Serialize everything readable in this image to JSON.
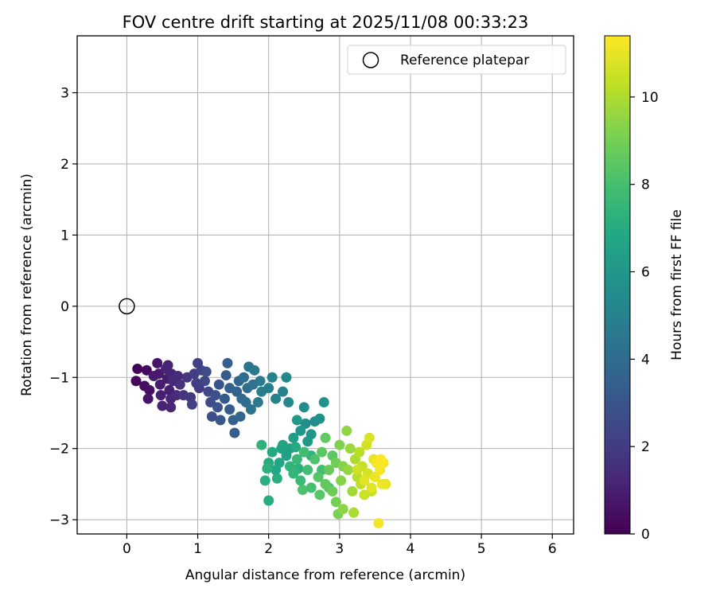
{
  "chart_data": {
    "type": "scatter",
    "title": "FOV centre drift starting at 2025/11/08 00:33:23",
    "xlabel": "Angular distance from reference (arcmin)",
    "ylabel": "Rotation from reference (arcmin)",
    "xlim": [
      -0.7,
      6.3
    ],
    "ylim": [
      -3.2,
      3.8
    ],
    "xticks": [
      0,
      1,
      2,
      3,
      4,
      5,
      6
    ],
    "yticks": [
      -3,
      -2,
      -1,
      0,
      1,
      2,
      3
    ],
    "xtick_labels": [
      "0",
      "1",
      "2",
      "3",
      "4",
      "5",
      "6"
    ],
    "ytick_labels": [
      "−3",
      "−2",
      "−1",
      "0",
      "1",
      "2",
      "3"
    ],
    "grid": true,
    "legend": {
      "label": "Reference platepar",
      "position": "top-right"
    },
    "reference_point": {
      "x": 0,
      "y": 0,
      "marker": "open-circle"
    },
    "colorbar": {
      "label": "Hours from first FF file",
      "min": 0,
      "max": 11.4,
      "ticks": [
        0,
        2,
        4,
        6,
        8,
        10
      ],
      "tick_labels": [
        "0",
        "2",
        "4",
        "6",
        "8",
        "10"
      ],
      "colormap": "viridis"
    },
    "series": [
      {
        "name": "FOV centre",
        "points": [
          {
            "x": 0.15,
            "y": -0.88,
            "t": 0.1
          },
          {
            "x": 0.13,
            "y": -1.05,
            "t": 0.2
          },
          {
            "x": 0.28,
            "y": -0.9,
            "t": 0.3
          },
          {
            "x": 0.25,
            "y": -1.12,
            "t": 0.4
          },
          {
            "x": 0.32,
            "y": -1.18,
            "t": 0.5
          },
          {
            "x": 0.3,
            "y": -1.3,
            "t": 0.6
          },
          {
            "x": 0.43,
            "y": -0.8,
            "t": 0.7
          },
          {
            "x": 0.45,
            "y": -0.95,
            "t": 0.8
          },
          {
            "x": 0.47,
            "y": -1.1,
            "t": 0.9
          },
          {
            "x": 0.48,
            "y": -1.25,
            "t": 1.0
          },
          {
            "x": 0.5,
            "y": -1.4,
            "t": 1.1
          },
          {
            "x": 0.55,
            "y": -0.88,
            "t": 1.2
          },
          {
            "x": 0.57,
            "y": -1.02,
            "t": 0.9
          },
          {
            "x": 0.6,
            "y": -1.18,
            "t": 1.0
          },
          {
            "x": 0.58,
            "y": -0.83,
            "t": 1.1
          },
          {
            "x": 0.62,
            "y": -1.3,
            "t": 1.3
          },
          {
            "x": 0.63,
            "y": -0.95,
            "t": 1.2
          },
          {
            "x": 0.65,
            "y": -1.05,
            "t": 1.4
          },
          {
            "x": 0.62,
            "y": -1.42,
            "t": 1.3
          },
          {
            "x": 0.7,
            "y": -1.25,
            "t": 1.5
          },
          {
            "x": 0.75,
            "y": -1.1,
            "t": 1.6
          },
          {
            "x": 0.8,
            "y": -1.25,
            "t": 1.7
          },
          {
            "x": 0.85,
            "y": -1.0,
            "t": 1.8
          },
          {
            "x": 0.9,
            "y": -1.28,
            "t": 1.9
          },
          {
            "x": 0.95,
            "y": -0.95,
            "t": 2.0
          },
          {
            "x": 0.98,
            "y": -1.08,
            "t": 2.1
          },
          {
            "x": 1.0,
            "y": -0.8,
            "t": 2.2
          },
          {
            "x": 1.02,
            "y": -1.15,
            "t": 2.0
          },
          {
            "x": 1.05,
            "y": -0.9,
            "t": 2.3
          },
          {
            "x": 0.92,
            "y": -1.38,
            "t": 2.2
          },
          {
            "x": 1.1,
            "y": -1.05,
            "t": 2.4
          },
          {
            "x": 1.15,
            "y": -1.2,
            "t": 2.5
          },
          {
            "x": 1.18,
            "y": -1.35,
            "t": 2.6
          },
          {
            "x": 1.2,
            "y": -1.55,
            "t": 2.7
          },
          {
            "x": 1.25,
            "y": -1.25,
            "t": 2.8
          },
          {
            "x": 1.28,
            "y": -1.42,
            "t": 2.9
          },
          {
            "x": 1.3,
            "y": -1.1,
            "t": 3.0
          },
          {
            "x": 1.32,
            "y": -1.6,
            "t": 3.1
          },
          {
            "x": 1.38,
            "y": -1.3,
            "t": 3.2
          },
          {
            "x": 1.4,
            "y": -0.97,
            "t": 3.3
          },
          {
            "x": 1.42,
            "y": -0.8,
            "t": 3.4
          },
          {
            "x": 1.45,
            "y": -1.45,
            "t": 3.3
          },
          {
            "x": 1.5,
            "y": -1.6,
            "t": 3.5
          },
          {
            "x": 1.52,
            "y": -1.78,
            "t": 3.4
          },
          {
            "x": 1.55,
            "y": -1.2,
            "t": 3.6
          },
          {
            "x": 1.58,
            "y": -1.05,
            "t": 3.7
          },
          {
            "x": 1.6,
            "y": -1.55,
            "t": 3.8
          },
          {
            "x": 1.62,
            "y": -1.3,
            "t": 3.9
          },
          {
            "x": 1.65,
            "y": -1.0,
            "t": 4.0
          },
          {
            "x": 1.68,
            "y": -1.35,
            "t": 4.1
          },
          {
            "x": 1.7,
            "y": -1.15,
            "t": 4.2
          },
          {
            "x": 1.72,
            "y": -0.85,
            "t": 4.3
          },
          {
            "x": 1.75,
            "y": -1.45,
            "t": 4.4
          },
          {
            "x": 1.78,
            "y": -1.1,
            "t": 4.3
          },
          {
            "x": 1.8,
            "y": -0.9,
            "t": 4.5
          },
          {
            "x": 1.85,
            "y": -1.35,
            "t": 4.6
          },
          {
            "x": 1.88,
            "y": -1.05,
            "t": 4.7
          },
          {
            "x": 1.9,
            "y": -1.2,
            "t": 4.8
          },
          {
            "x": 2.0,
            "y": -1.15,
            "t": 4.9
          },
          {
            "x": 2.05,
            "y": -1.0,
            "t": 5.0
          },
          {
            "x": 2.1,
            "y": -1.3,
            "t": 5.0
          },
          {
            "x": 2.2,
            "y": -1.2,
            "t": 5.1
          },
          {
            "x": 2.25,
            "y": -1.0,
            "t": 5.2
          },
          {
            "x": 2.28,
            "y": -1.35,
            "t": 5.3
          },
          {
            "x": 2.5,
            "y": -1.42,
            "t": 5.4
          },
          {
            "x": 2.52,
            "y": -1.65,
            "t": 5.5
          },
          {
            "x": 2.65,
            "y": -1.62,
            "t": 5.6
          },
          {
            "x": 2.72,
            "y": -1.58,
            "t": 5.7
          },
          {
            "x": 2.78,
            "y": -1.35,
            "t": 5.8
          },
          {
            "x": 2.6,
            "y": -1.8,
            "t": 5.9
          },
          {
            "x": 2.45,
            "y": -1.75,
            "t": 6.0
          },
          {
            "x": 2.55,
            "y": -1.9,
            "t": 6.1
          },
          {
            "x": 2.4,
            "y": -1.6,
            "t": 6.2
          },
          {
            "x": 2.35,
            "y": -1.85,
            "t": 6.3
          },
          {
            "x": 2.3,
            "y": -2.0,
            "t": 6.4
          },
          {
            "x": 2.25,
            "y": -2.1,
            "t": 6.5
          },
          {
            "x": 2.2,
            "y": -1.95,
            "t": 6.6
          },
          {
            "x": 2.15,
            "y": -2.2,
            "t": 6.7
          },
          {
            "x": 2.1,
            "y": -2.3,
            "t": 6.8
          },
          {
            "x": 2.05,
            "y": -2.05,
            "t": 6.9
          },
          {
            "x": 2.0,
            "y": -2.2,
            "t": 7.0
          },
          {
            "x": 1.95,
            "y": -2.45,
            "t": 7.1
          },
          {
            "x": 2.0,
            "y": -2.73,
            "t": 7.0
          },
          {
            "x": 1.98,
            "y": -2.28,
            "t": 7.2
          },
          {
            "x": 1.9,
            "y": -1.95,
            "t": 7.3
          },
          {
            "x": 2.12,
            "y": -2.42,
            "t": 7.1
          },
          {
            "x": 2.3,
            "y": -2.25,
            "t": 7.4
          },
          {
            "x": 2.35,
            "y": -2.35,
            "t": 7.5
          },
          {
            "x": 2.4,
            "y": -2.15,
            "t": 7.6
          },
          {
            "x": 2.45,
            "y": -2.45,
            "t": 7.7
          },
          {
            "x": 2.5,
            "y": -2.05,
            "t": 7.8
          },
          {
            "x": 2.55,
            "y": -2.3,
            "t": 7.9
          },
          {
            "x": 2.6,
            "y": -2.55,
            "t": 8.0
          },
          {
            "x": 2.48,
            "y": -2.58,
            "t": 8.1
          },
          {
            "x": 2.65,
            "y": -2.15,
            "t": 8.2
          },
          {
            "x": 2.7,
            "y": -2.4,
            "t": 8.3
          },
          {
            "x": 2.72,
            "y": -2.65,
            "t": 8.4
          },
          {
            "x": 2.75,
            "y": -2.05,
            "t": 8.5
          },
          {
            "x": 2.8,
            "y": -2.5,
            "t": 8.6
          },
          {
            "x": 2.8,
            "y": -1.85,
            "t": 8.6
          },
          {
            "x": 2.85,
            "y": -2.3,
            "t": 8.7
          },
          {
            "x": 2.9,
            "y": -2.6,
            "t": 8.8
          },
          {
            "x": 2.95,
            "y": -2.2,
            "t": 8.9
          },
          {
            "x": 2.95,
            "y": -2.75,
            "t": 9.0
          },
          {
            "x": 2.98,
            "y": -2.92,
            "t": 9.1
          },
          {
            "x": 3.0,
            "y": -1.95,
            "t": 9.2
          },
          {
            "x": 3.02,
            "y": -2.45,
            "t": 9.3
          },
          {
            "x": 3.05,
            "y": -2.85,
            "t": 9.4
          },
          {
            "x": 3.1,
            "y": -1.75,
            "t": 9.5
          },
          {
            "x": 3.12,
            "y": -2.3,
            "t": 9.6
          },
          {
            "x": 3.15,
            "y": -2.0,
            "t": 9.7
          },
          {
            "x": 3.18,
            "y": -2.6,
            "t": 9.8
          },
          {
            "x": 3.2,
            "y": -2.9,
            "t": 9.9
          },
          {
            "x": 3.22,
            "y": -2.15,
            "t": 10.0
          },
          {
            "x": 3.25,
            "y": -2.4,
            "t": 10.1
          },
          {
            "x": 3.28,
            "y": -2.05,
            "t": 10.2
          },
          {
            "x": 3.3,
            "y": -2.5,
            "t": 10.3
          },
          {
            "x": 3.32,
            "y": -2.25,
            "t": 10.4
          },
          {
            "x": 3.35,
            "y": -2.65,
            "t": 10.5
          },
          {
            "x": 3.38,
            "y": -1.95,
            "t": 10.6
          },
          {
            "x": 3.4,
            "y": -2.35,
            "t": 10.7
          },
          {
            "x": 3.42,
            "y": -1.85,
            "t": 10.8
          },
          {
            "x": 3.45,
            "y": -2.55,
            "t": 10.9
          },
          {
            "x": 3.48,
            "y": -2.15,
            "t": 11.0
          },
          {
            "x": 3.5,
            "y": -2.4,
            "t": 11.1
          },
          {
            "x": 3.52,
            "y": -2.2,
            "t": 11.2
          },
          {
            "x": 3.55,
            "y": -3.05,
            "t": 11.2
          },
          {
            "x": 3.57,
            "y": -2.3,
            "t": 11.3
          },
          {
            "x": 3.6,
            "y": -2.5,
            "t": 11.1
          },
          {
            "x": 3.62,
            "y": -2.2,
            "t": 11.3
          },
          {
            "x": 3.65,
            "y": -2.5,
            "t": 11.0
          },
          {
            "x": 3.58,
            "y": -2.15,
            "t": 11.4
          },
          {
            "x": 2.85,
            "y": -2.55,
            "t": 8.2
          },
          {
            "x": 2.9,
            "y": -2.1,
            "t": 8.5
          },
          {
            "x": 3.05,
            "y": -2.25,
            "t": 9.3
          },
          {
            "x": 3.25,
            "y": -2.3,
            "t": 10.6
          },
          {
            "x": 3.35,
            "y": -2.45,
            "t": 10.9
          },
          {
            "x": 3.45,
            "y": -2.6,
            "t": 10.4
          },
          {
            "x": 2.75,
            "y": -2.3,
            "t": 7.9
          },
          {
            "x": 2.6,
            "y": -2.1,
            "t": 7.3
          },
          {
            "x": 2.38,
            "y": -1.98,
            "t": 6.9
          },
          {
            "x": 2.42,
            "y": -2.28,
            "t": 7.2
          },
          {
            "x": 2.18,
            "y": -2.0,
            "t": 6.6
          },
          {
            "x": 1.45,
            "y": -1.15,
            "t": 3.5
          },
          {
            "x": 1.12,
            "y": -0.92,
            "t": 2.6
          },
          {
            "x": 0.72,
            "y": -0.98,
            "t": 1.4
          },
          {
            "x": 0.38,
            "y": -0.98,
            "t": 0.8
          }
        ]
      }
    ]
  }
}
